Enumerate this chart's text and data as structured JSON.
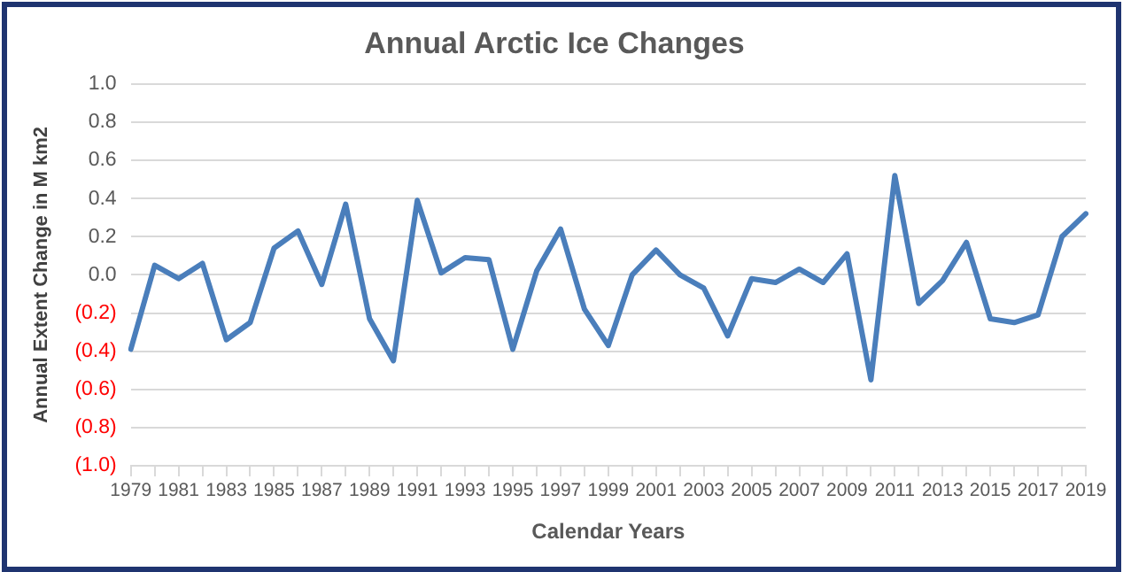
{
  "chart_data": {
    "type": "line",
    "title": "Annual Arctic Ice Changes",
    "xlabel": "Calendar Years",
    "ylabel": "Annual Extent Change in M km2",
    "categories": [
      "1979",
      null,
      "1981",
      null,
      "1983",
      null,
      "1985",
      null,
      "1987",
      null,
      "1989",
      null,
      "1991",
      null,
      "1993",
      null,
      "1995",
      null,
      "1997",
      null,
      "1999",
      null,
      "2001",
      null,
      "2003",
      null,
      "2005",
      null,
      "2007",
      null,
      "2009",
      null,
      "2011",
      null,
      "2013",
      null,
      "2015",
      null,
      "2017",
      null,
      "2019"
    ],
    "series": [
      {
        "color": "#4a7ebb",
        "values": [
          -0.39,
          0.05,
          -0.02,
          0.06,
          -0.34,
          -0.25,
          0.14,
          0.23,
          -0.05,
          0.37,
          -0.23,
          -0.45,
          0.39,
          0.01,
          0.09,
          0.08,
          -0.39,
          0.02,
          0.24,
          -0.18,
          -0.37,
          0.0,
          0.13,
          0.0,
          -0.07,
          -0.32,
          -0.02,
          -0.04,
          0.03,
          -0.04,
          0.11,
          -0.55,
          0.52,
          -0.15,
          -0.03,
          0.17,
          -0.23,
          -0.25,
          -0.21,
          0.2,
          0.32
        ]
      }
    ],
    "ylim": [
      -1,
      1
    ],
    "yticks": [
      {
        "value": -1,
        "label": "(1.0)"
      },
      {
        "value": -0.8,
        "label": "(0.8)"
      },
      {
        "value": -0.6,
        "label": "(0.6)"
      },
      {
        "value": -0.4,
        "label": "(0.4)"
      },
      {
        "value": -0.2,
        "label": "(0.2)"
      },
      {
        "value": 0,
        "label": "0.0"
      },
      {
        "value": 0.2,
        "label": "0.2"
      },
      {
        "value": 0.4,
        "label": "0.4"
      },
      {
        "value": 0.6,
        "label": "0.6"
      },
      {
        "value": 0.8,
        "label": "0.8"
      },
      {
        "value": 1,
        "label": "1.0"
      }
    ],
    "grid": "y",
    "legend": false,
    "marker": "none",
    "line_style": "solid"
  }
}
